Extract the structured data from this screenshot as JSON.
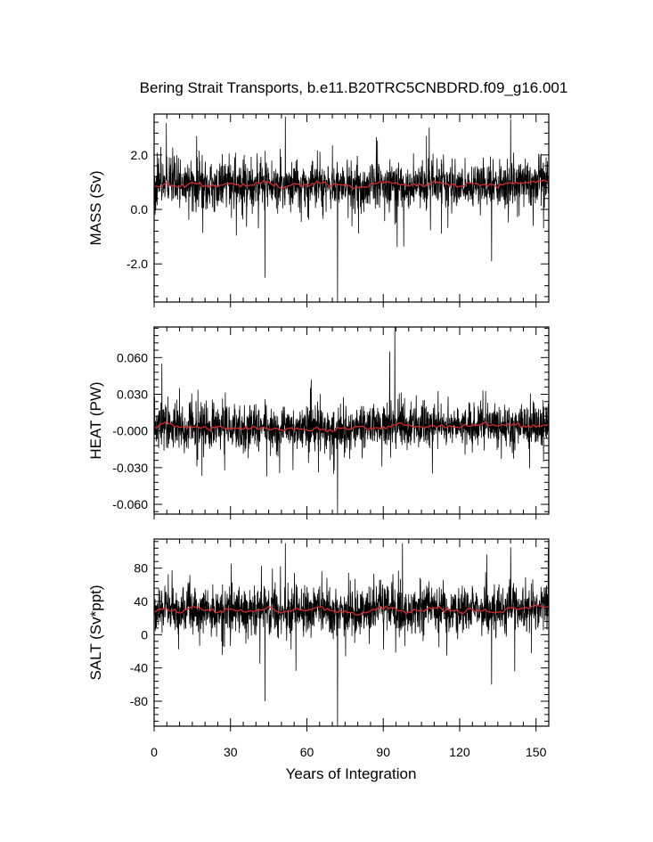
{
  "figure": {
    "title": "Bering Strait Transports, b.e11.B20TRC5CNBDRD.f09_g16.001",
    "xlabel": "Years of Integration",
    "colors": {
      "raw": "#000000",
      "smooth": "#d92b2b"
    }
  },
  "chart_data": [
    {
      "type": "line",
      "ylabel": "MASS (Sv)",
      "xlim": [
        0,
        155
      ],
      "ylim": [
        -3.4,
        3.5
      ],
      "xticks": [
        0,
        30,
        60,
        90,
        120,
        150
      ],
      "yticks": [
        -2.0,
        0.0,
        2.0
      ],
      "ytick_labels": [
        "-2.0",
        "0.0",
        "2.0"
      ],
      "series": [
        {
          "role": "monthly",
          "color": "#000000",
          "n_months": 1860,
          "baseline": 0.9,
          "typical_range": [
            -0.3,
            1.9
          ],
          "extremes": [
            {
              "x": 43.5,
              "y": -2.5
            },
            {
              "x": 72.0,
              "y": -3.4
            },
            {
              "x": 51.5,
              "y": 3.4
            },
            {
              "x": 108.0,
              "y": 3.0
            },
            {
              "x": 140.0,
              "y": 3.3
            },
            {
              "x": 132.5,
              "y": -1.9
            }
          ]
        },
        {
          "role": "annual-mean",
          "color": "#d92b2b",
          "x": [
            0,
            5,
            10,
            15,
            20,
            25,
            30,
            35,
            40,
            45,
            50,
            55,
            60,
            65,
            70,
            75,
            80,
            85,
            90,
            95,
            100,
            105,
            110,
            115,
            120,
            125,
            130,
            135,
            140,
            145,
            150,
            155
          ],
          "y": [
            0.85,
            0.95,
            0.8,
            1.0,
            0.9,
            0.85,
            0.95,
            0.85,
            0.9,
            1.0,
            0.8,
            0.95,
            0.9,
            1.0,
            0.85,
            0.9,
            0.75,
            0.9,
            1.0,
            0.95,
            0.85,
            0.9,
            1.0,
            0.95,
            0.85,
            0.95,
            0.9,
            0.85,
            1.0,
            0.95,
            1.0,
            1.05
          ]
        }
      ]
    },
    {
      "type": "line",
      "ylabel": "HEAT (PW)",
      "xlim": [
        0,
        155
      ],
      "ylim": [
        -0.068,
        0.085
      ],
      "xticks": [
        0,
        30,
        60,
        90,
        120,
        150
      ],
      "yticks": [
        -0.06,
        -0.03,
        0.0,
        0.03,
        0.06
      ],
      "ytick_labels": [
        "-0.060",
        "-0.030",
        "-0.000",
        "0.030",
        "0.060"
      ],
      "series": [
        {
          "role": "monthly",
          "color": "#000000",
          "n_months": 1860,
          "baseline": 0.003,
          "typical_range": [
            -0.015,
            0.03
          ],
          "extremes": [
            {
              "x": 94.5,
              "y": 0.085
            },
            {
              "x": 92.5,
              "y": 0.065
            },
            {
              "x": 72.0,
              "y": -0.068
            },
            {
              "x": 70.5,
              "y": -0.035
            },
            {
              "x": 3.0,
              "y": 0.055
            }
          ]
        },
        {
          "role": "annual-mean",
          "color": "#d92b2b",
          "x": [
            0,
            5,
            10,
            15,
            20,
            25,
            30,
            35,
            40,
            45,
            50,
            55,
            60,
            65,
            70,
            75,
            80,
            85,
            90,
            95,
            100,
            105,
            110,
            115,
            120,
            125,
            130,
            135,
            140,
            145,
            150,
            155
          ],
          "y": [
            0.004,
            0.006,
            0.003,
            0.004,
            0.002,
            0.003,
            0.002,
            0.001,
            0.003,
            0.002,
            0.001,
            0.002,
            0.001,
            0.002,
            0.001,
            0.002,
            0.004,
            0.003,
            0.003,
            0.005,
            0.004,
            0.003,
            0.004,
            0.004,
            0.003,
            0.004,
            0.005,
            0.004,
            0.005,
            0.004,
            0.004,
            0.005
          ]
        }
      ]
    },
    {
      "type": "line",
      "ylabel": "SALT (Sv*ppt)",
      "xlim": [
        0,
        155
      ],
      "ylim": [
        -110,
        115
      ],
      "xticks": [
        0,
        30,
        60,
        90,
        120,
        150
      ],
      "yticks": [
        -80,
        -40,
        0,
        40,
        80
      ],
      "ytick_labels": [
        "-80",
        "-40",
        "0",
        "40",
        "80"
      ],
      "series": [
        {
          "role": "monthly",
          "color": "#000000",
          "n_months": 1860,
          "baseline": 30,
          "typical_range": [
            -10,
            60
          ],
          "extremes": [
            {
              "x": 43.5,
              "y": -80
            },
            {
              "x": 72.0,
              "y": -110
            },
            {
              "x": 51.5,
              "y": 110
            },
            {
              "x": 97.5,
              "y": 110
            },
            {
              "x": 140.0,
              "y": 105
            },
            {
              "x": 132.5,
              "y": -60
            }
          ]
        },
        {
          "role": "annual-mean",
          "color": "#d92b2b",
          "x": [
            0,
            5,
            10,
            15,
            20,
            25,
            30,
            35,
            40,
            45,
            50,
            55,
            60,
            65,
            70,
            75,
            80,
            85,
            90,
            95,
            100,
            105,
            110,
            115,
            120,
            125,
            130,
            135,
            140,
            145,
            150,
            155
          ],
          "y": [
            28,
            32,
            26,
            33,
            30,
            28,
            31,
            27,
            29,
            33,
            26,
            31,
            29,
            33,
            27,
            29,
            24,
            29,
            33,
            31,
            27,
            29,
            33,
            31,
            27,
            31,
            29,
            27,
            33,
            31,
            33,
            35
          ]
        }
      ]
    }
  ]
}
